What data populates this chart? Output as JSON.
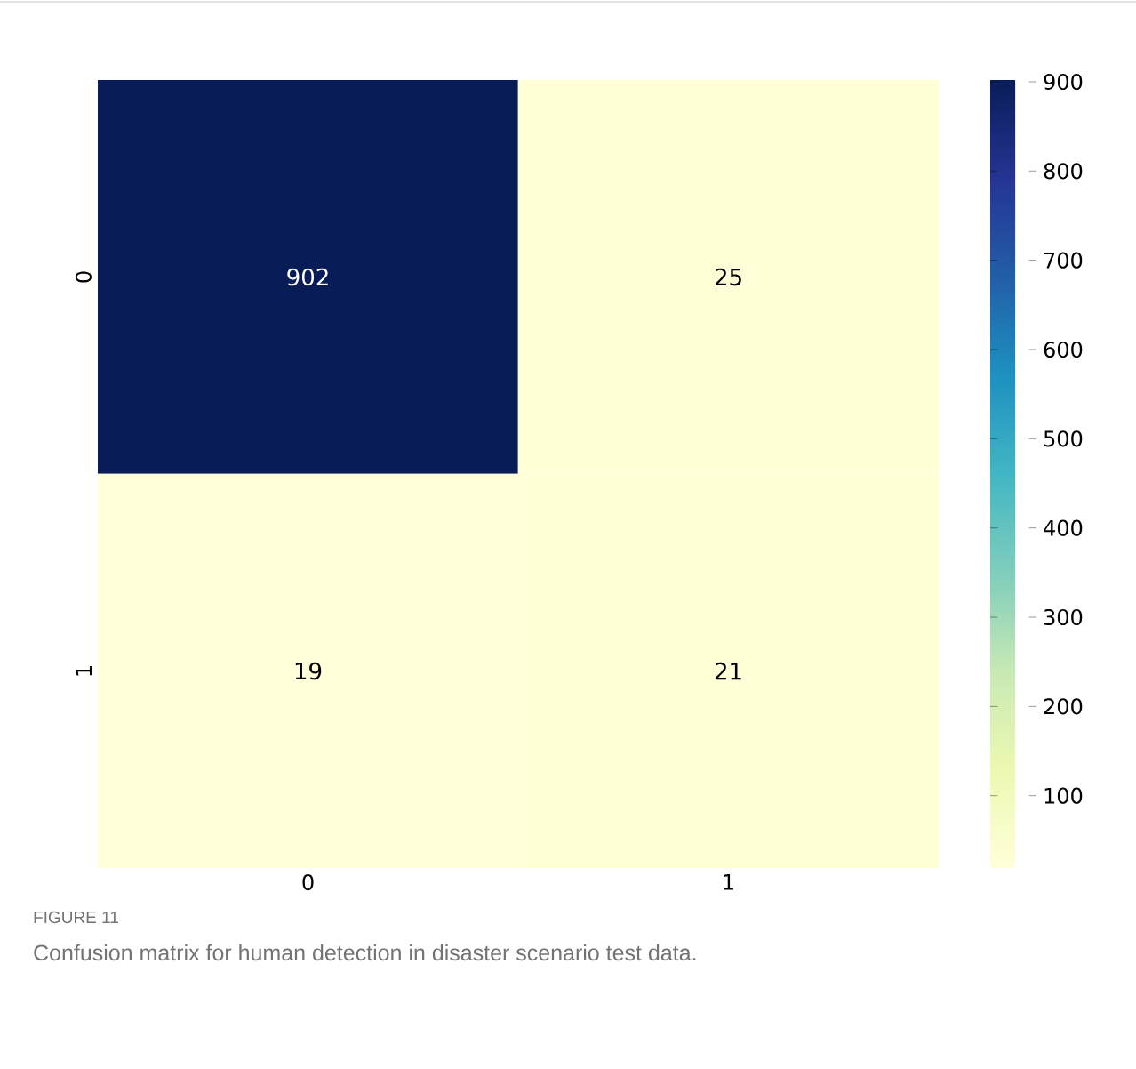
{
  "chart_data": {
    "type": "heatmap",
    "categories": [
      "0",
      "1"
    ],
    "y_categories": [
      "0",
      "1"
    ],
    "cells": [
      [
        902,
        25
      ],
      [
        19,
        21
      ]
    ],
    "clim": [
      19,
      902
    ],
    "cticks": [
      100,
      200,
      300,
      400,
      500,
      600,
      700,
      800,
      900
    ],
    "data_labels": true,
    "annotations": [
      "FIGURE 11",
      "Confusion matrix for human detection in disaster scenario test data."
    ]
  }
}
